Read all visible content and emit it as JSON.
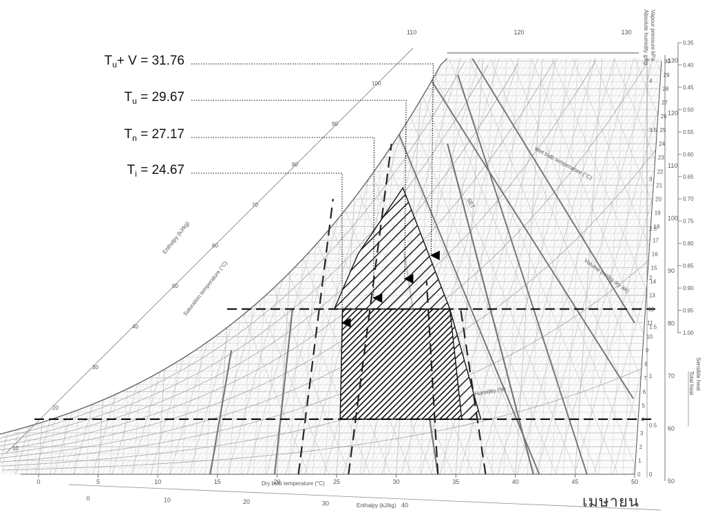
{
  "annotations": [
    {
      "id": "tuv",
      "var": "T",
      "sub": "u",
      "suffix": "+ V",
      "value": "31.76",
      "dbt": 31.76,
      "end_w": 15.5
    },
    {
      "id": "tu",
      "var": "T",
      "sub": "u",
      "suffix": "",
      "value": "29.67",
      "dbt": 29.67,
      "end_w": 13.8
    },
    {
      "id": "tn",
      "var": "T",
      "sub": "n",
      "suffix": "",
      "value": "27.17",
      "dbt": 27.17,
      "end_w": 12.4
    },
    {
      "id": "ti",
      "var": "T",
      "sub": "i",
      "suffix": "",
      "value": "24.67",
      "dbt": 24.67,
      "end_w": 10.6
    }
  ],
  "footer_text": "เมษายน",
  "chart_data": {
    "type": "psychrometric",
    "x_axis": {
      "label": "Dry bulb temperature (°C)",
      "range": [
        0,
        50
      ],
      "ticks": [
        0,
        5,
        10,
        15,
        20,
        25,
        30,
        35,
        40,
        45,
        50
      ]
    },
    "y_axis_right": {
      "label": "Absolute humidity g/kg",
      "range": [
        0,
        30
      ],
      "ticks": [
        0,
        1,
        2,
        3,
        4,
        5,
        6,
        7,
        8,
        9,
        10,
        11,
        12,
        13,
        14,
        15,
        16,
        17,
        18,
        19,
        20,
        21,
        22,
        23,
        24,
        25,
        26,
        27,
        28,
        29,
        30
      ]
    },
    "vapour_pressure_axis": {
      "label": "Vapour pressure kPa",
      "ticks": [
        0,
        0.5,
        1.0,
        1.5,
        2.0,
        2.5,
        3.0,
        3.5,
        4.0
      ]
    },
    "enthalpy_axis": {
      "label": "Enthalpy (kJ/kg)",
      "bottom_ticks": [
        0,
        10,
        20,
        30,
        40
      ],
      "top_ticks": [
        110,
        120,
        130
      ],
      "diagonal_ticks": [
        10,
        20,
        30,
        40,
        50,
        60,
        70,
        80,
        90,
        100
      ]
    },
    "side_axis_outer": {
      "ticks": [
        50,
        60,
        70,
        80,
        90,
        100,
        110,
        120,
        130
      ]
    },
    "shf_scale": {
      "label_top": "Sensible heat",
      "label_bottom": "Total heat",
      "ticks": [
        "0.35",
        "0.40",
        "0.45",
        "0.50",
        "0.55",
        "0.60",
        "0.65",
        "0.70",
        "0.75",
        "0.80",
        "0.85",
        "0.90",
        "0.95",
        "1.00"
      ]
    },
    "labels": {
      "saturation": "Saturation temperature (°C)",
      "wet_bulb": "Wet bulb temperature (°C)",
      "humidity_pct": "Humidity (%)",
      "volume": "Volume (m³/kg dry air)",
      "set": "SET"
    },
    "humidity_limits": {
      "lower": 4,
      "upper": 12
    },
    "comfort_zone_lower": [
      [
        25.0,
        4
      ],
      [
        24.6,
        12
      ],
      [
        33.6,
        12
      ],
      [
        35.2,
        4
      ]
    ],
    "comfort_zone_upper": [
      [
        23.9,
        12
      ],
      [
        25.6,
        16
      ],
      [
        29.0,
        20.8
      ],
      [
        33.6,
        12
      ]
    ]
  }
}
